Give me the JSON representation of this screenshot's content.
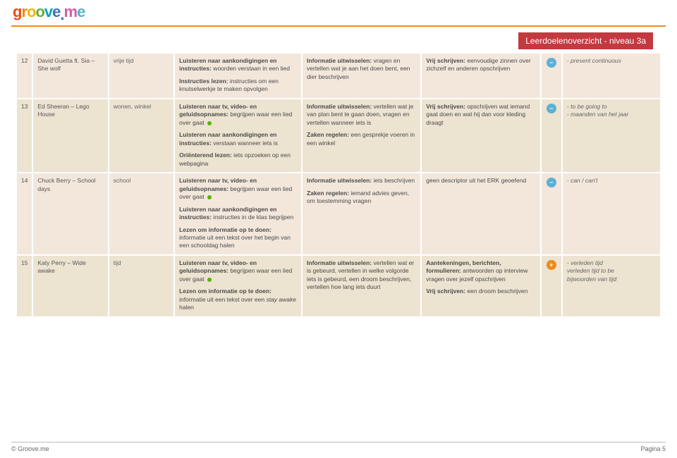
{
  "logo": {
    "g": "g",
    "r": "r",
    "o1": "o",
    "o2": "o",
    "v": "v",
    "e1": "e",
    "dot": ".",
    "m": "m",
    "e2": "e"
  },
  "level_badge": "Leerdoelenoverzicht - niveau 3a",
  "footer": {
    "left": "© Groove.me",
    "right": "Pagina 5"
  },
  "rows": [
    {
      "num": "12",
      "song": "David Guetta ft. Sia – She wolf",
      "theme": "vrije tijd",
      "lui_b1": "Luisteren naar aankondigingen en instructies:",
      "lui_t1": " woorden verstaan in een lied",
      "lui_b2": "Instructies lezen:",
      "lui_t2": " instructies om een knutselwerkje te maken opvolgen",
      "inf_b1": "Informatie uitwisselen:",
      "inf_t1": " vragen en vertellen wat je aan het doen bent, een dier beschrijven",
      "vrij_b1": "Vrij schrijven:",
      "vrij_t1": " eenvoudige zinnen over zichzelf en anderen opschrijven",
      "icon": "minus",
      "gram": "- present continuous"
    },
    {
      "num": "13",
      "song": "Ed Sheeran – Lego House",
      "theme": "wonen, winkel",
      "lui_b1": "Luisteren naar tv, video- en geluidsopnames:",
      "lui_t1": " begrijpen waar een lied over gaat ",
      "lui_b2": "Luisteren naar aankondigingen en instructies:",
      "lui_t2": " verstaan wanneer iets is",
      "lui_b3": "Oriënterend lezen:",
      "lui_t3": " iets opzoeken op een webpagina",
      "inf_b1": "Informatie uitwisselen:",
      "inf_t1": " vertellen wat je van plan bent te gaan doen, vragen en vertellen wanneer iets is",
      "inf_b2": "Zaken regelen:",
      "inf_t2": " een gesprekje voeren in een winkel",
      "vrij_b1": "Vrij schrijven:",
      "vrij_t1": " opschrijven wat iemand gaat doen en wat hij dan voor kleding draagt",
      "icon": "minus",
      "gram": "- to be going to\n- maanden van het jaar",
      "dot_after_lui1": true
    },
    {
      "num": "14",
      "song": "Chuck Berry – School days",
      "theme": "school",
      "lui_b1": "Luisteren naar tv, video- en geluidsopnames:",
      "lui_t1": " begrijpen waar een lied over gaat ",
      "lui_b2": "Luisteren naar aankondigingen en instructies:",
      "lui_t2": " instructies in de klas begrijpen",
      "lui_b3": "Lezen om informatie op te doen:",
      "lui_t3": " informatie uit een tekst over het begin van een schooldag halen",
      "inf_b1": "Informatie uitwisselen:",
      "inf_t1": " iets beschrijven",
      "inf_b2": "Zaken regelen:",
      "inf_t2": " iemand advies geven, om toestemming vragen",
      "vrij_t1": "geen descriptor uit het ERK geoefend",
      "icon": "minus",
      "gram": "- can / can't",
      "dot_after_lui1": true
    },
    {
      "num": "15",
      "song": "Katy Perry – Wide awake",
      "theme": "tijd",
      "lui_b1": "Luisteren naar tv, video- en geluidsopnames:",
      "lui_t1": " begrijpen waar een lied over gaat ",
      "lui_b2": "Lezen om informatie op te doen:",
      "lui_t2": " informatie uit een tekst over een stay awake halen",
      "inf_b1": "Informatie uitwisselen:",
      "inf_t1": " vertellen wat er is gebeurd, vertellen in welke volgorde iets is gebeurd, een droom beschrijven, vertellen hoe lang iets duurt",
      "vrij_b1": "Aantekeningen, berichten, formulieren:",
      "vrij_t1": " antwoorden op interview vragen over jezelf opschrijven",
      "vrij_b2": "Vrij schrijven:",
      "vrij_t2": " een droom beschrijven",
      "icon": "plus",
      "gram": "- verleden tijd\n  verleden tijd to be\n  bijwoorden van tijd",
      "dot_after_lui1": true,
      "italic_stay_awake": true
    }
  ]
}
